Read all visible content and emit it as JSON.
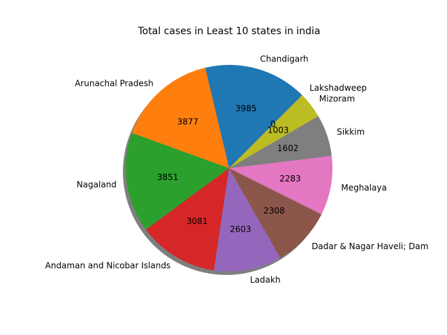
{
  "chart_data": {
    "type": "pie",
    "title": "Total cases in Least 10 states in india",
    "categories": [
      "Chandigarh",
      "Arunachal Pradesh",
      "Nagaland",
      "Andaman and Nicobar Islands",
      "Ladakh",
      "Dadar & Nagar Haveli; Daman & Diu",
      "Meghalaya",
      "Sikkim",
      "Mizoram",
      "Lakshadweep"
    ],
    "label_text": [
      "Chandigarh",
      "Arunachal Pradesh",
      "Nagaland",
      "Andaman and Nicobar Islands",
      "Ladakh",
      "Dadar & Nagar Haveli; Dam",
      "Meghalaya",
      "Sikkim",
      "Mizoram",
      "Lakshadweep"
    ],
    "values": [
      3985,
      3877,
      3851,
      3081,
      2603,
      2308,
      2283,
      1602,
      1003,
      0
    ],
    "colors": [
      "#1f77b4",
      "#ff7f0e",
      "#2ca02c",
      "#d62728",
      "#9467bd",
      "#8c564b",
      "#e377c2",
      "#7f7f7f",
      "#bcbd22",
      "#17becf"
    ],
    "start_angle_deg": 45,
    "shadow": true,
    "legend": "none"
  }
}
